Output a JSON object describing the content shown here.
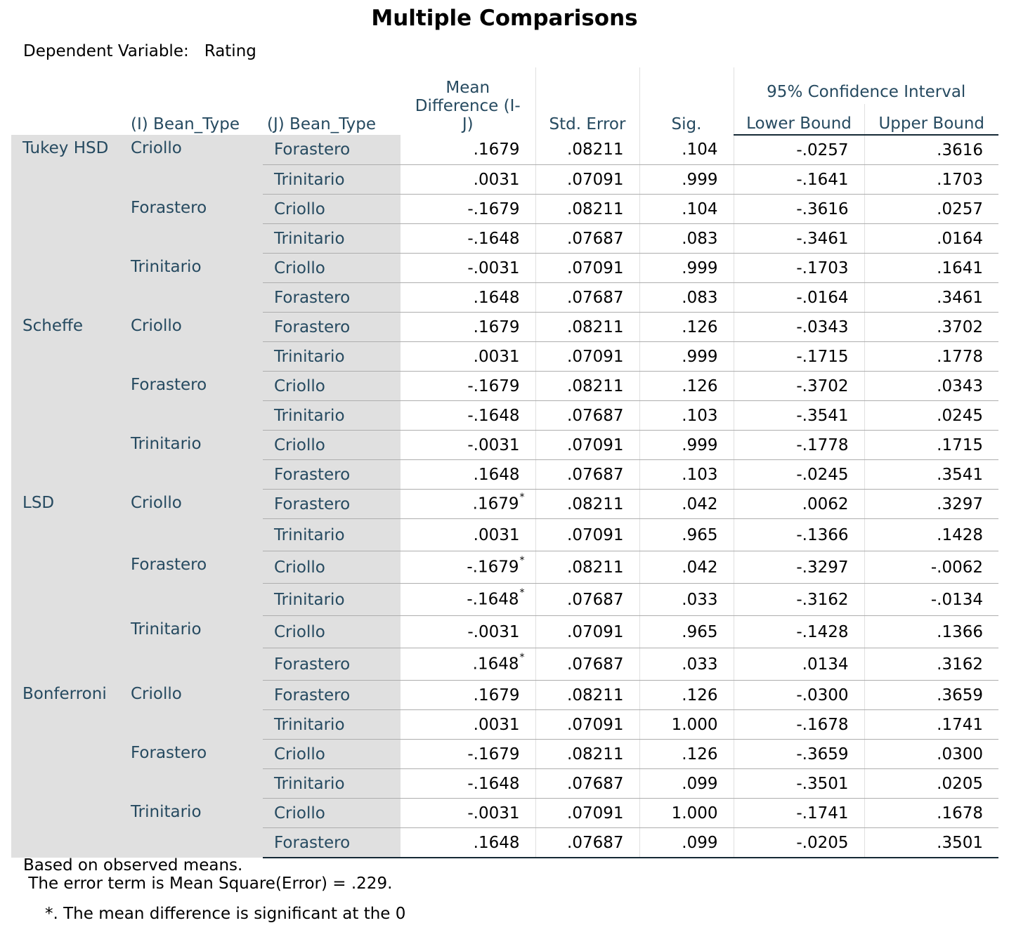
{
  "title": "Multiple Comparisons",
  "dependent_variable_label": "Dependent Variable:",
  "dependent_variable": "Rating",
  "headers": {
    "i_bean": "(I) Bean_Type",
    "j_bean": "(J) Bean_Type",
    "mean_diff_line1": "Mean",
    "mean_diff_line2": "Difference (I-",
    "mean_diff_line3": "J)",
    "std_error": "Std. Error",
    "sig": "Sig.",
    "ci": "95% Confidence Interval",
    "lower": "Lower Bound",
    "upper": "Upper Bound"
  },
  "tests": [
    {
      "name": "Tukey HSD",
      "rows": [
        [
          "Criollo",
          "Forastero",
          ".1679",
          "",
          ".08211",
          ".104",
          "-.0257",
          ".3616"
        ],
        [
          "",
          "Trinitario",
          ".0031",
          "",
          ".07091",
          ".999",
          "-.1641",
          ".1703"
        ],
        [
          "Forastero",
          "Criollo",
          "-.1679",
          "",
          ".08211",
          ".104",
          "-.3616",
          ".0257"
        ],
        [
          "",
          "Trinitario",
          "-.1648",
          "",
          ".07687",
          ".083",
          "-.3461",
          ".0164"
        ],
        [
          "Trinitario",
          "Criollo",
          "-.0031",
          "",
          ".07091",
          ".999",
          "-.1703",
          ".1641"
        ],
        [
          "",
          "Forastero",
          ".1648",
          "",
          ".07687",
          ".083",
          "-.0164",
          ".3461"
        ]
      ]
    },
    {
      "name": "Scheffe",
      "rows": [
        [
          "Criollo",
          "Forastero",
          ".1679",
          "",
          ".08211",
          ".126",
          "-.0343",
          ".3702"
        ],
        [
          "",
          "Trinitario",
          ".0031",
          "",
          ".07091",
          ".999",
          "-.1715",
          ".1778"
        ],
        [
          "Forastero",
          "Criollo",
          "-.1679",
          "",
          ".08211",
          ".126",
          "-.3702",
          ".0343"
        ],
        [
          "",
          "Trinitario",
          "-.1648",
          "",
          ".07687",
          ".103",
          "-.3541",
          ".0245"
        ],
        [
          "Trinitario",
          "Criollo",
          "-.0031",
          "",
          ".07091",
          ".999",
          "-.1778",
          ".1715"
        ],
        [
          "",
          "Forastero",
          ".1648",
          "",
          ".07687",
          ".103",
          "-.0245",
          ".3541"
        ]
      ]
    },
    {
      "name": "LSD",
      "rows": [
        [
          "Criollo",
          "Forastero",
          ".1679",
          "*",
          ".08211",
          ".042",
          ".0062",
          ".3297"
        ],
        [
          "",
          "Trinitario",
          ".0031",
          "",
          ".07091",
          ".965",
          "-.1366",
          ".1428"
        ],
        [
          "Forastero",
          "Criollo",
          "-.1679",
          "*",
          ".08211",
          ".042",
          "-.3297",
          "-.0062"
        ],
        [
          "",
          "Trinitario",
          "-.1648",
          "*",
          ".07687",
          ".033",
          "-.3162",
          "-.0134"
        ],
        [
          "Trinitario",
          "Criollo",
          "-.0031",
          "",
          ".07091",
          ".965",
          "-.1428",
          ".1366"
        ],
        [
          "",
          "Forastero",
          ".1648",
          "*",
          ".07687",
          ".033",
          ".0134",
          ".3162"
        ]
      ]
    },
    {
      "name": "Bonferroni",
      "rows": [
        [
          "Criollo",
          "Forastero",
          ".1679",
          "",
          ".08211",
          ".126",
          "-.0300",
          ".3659"
        ],
        [
          "",
          "Trinitario",
          ".0031",
          "",
          ".07091",
          "1.000",
          "-.1678",
          ".1741"
        ],
        [
          "Forastero",
          "Criollo",
          "-.1679",
          "",
          ".08211",
          ".126",
          "-.3659",
          ".0300"
        ],
        [
          "",
          "Trinitario",
          "-.1648",
          "",
          ".07687",
          ".099",
          "-.3501",
          ".0205"
        ],
        [
          "Trinitario",
          "Criollo",
          "-.0031",
          "",
          ".07091",
          "1.000",
          "-.1741",
          ".1678"
        ],
        [
          "",
          "Forastero",
          ".1648",
          "",
          ".07687",
          ".099",
          "-.0205",
          ".3501"
        ]
      ]
    }
  ],
  "footnotes": {
    "line1": "Based on observed means.",
    "line2": " The error term is Mean Square(Error) = .229.",
    "line3": "*. The mean difference is significant at the 0"
  }
}
